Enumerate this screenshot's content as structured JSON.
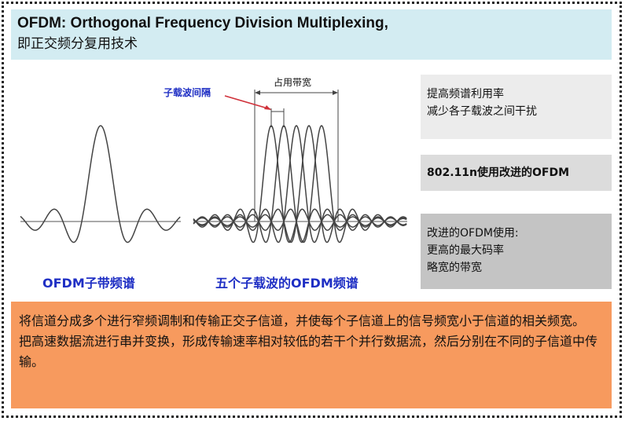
{
  "title": {
    "line1": "OFDM: Orthogonal Frequency Division Multiplexing,",
    "line2": "即正交频分复用技术"
  },
  "diagram": {
    "left_caption": "OFDM子带频谱",
    "right_caption": "五个子载波的OFDM频谱",
    "spacing_label": "子载波间隔",
    "bandwidth_label": "占用带宽",
    "colors": {
      "caption": "#1f2fc4",
      "curve": "#444444",
      "arrow": "#d0313a"
    }
  },
  "side": {
    "box1": [
      "提高频谱利用率",
      "减少各子载波之间干扰"
    ],
    "box2": "802.11n使用改进的OFDM",
    "box3": [
      "改进的OFDM使用:",
      "更高的最大码率",
      "略宽的带宽"
    ]
  },
  "bottom": {
    "para1": "将信道分成多个进行窄频调制和传输正交子信道，并使每个子信道上的信号频宽小于信道的相关频宽。",
    "para2": "把高速数据流进行串并变换，形成传输速率相对较低的若干个并行数据流，然后分别在不同的子信道中传输。"
  }
}
